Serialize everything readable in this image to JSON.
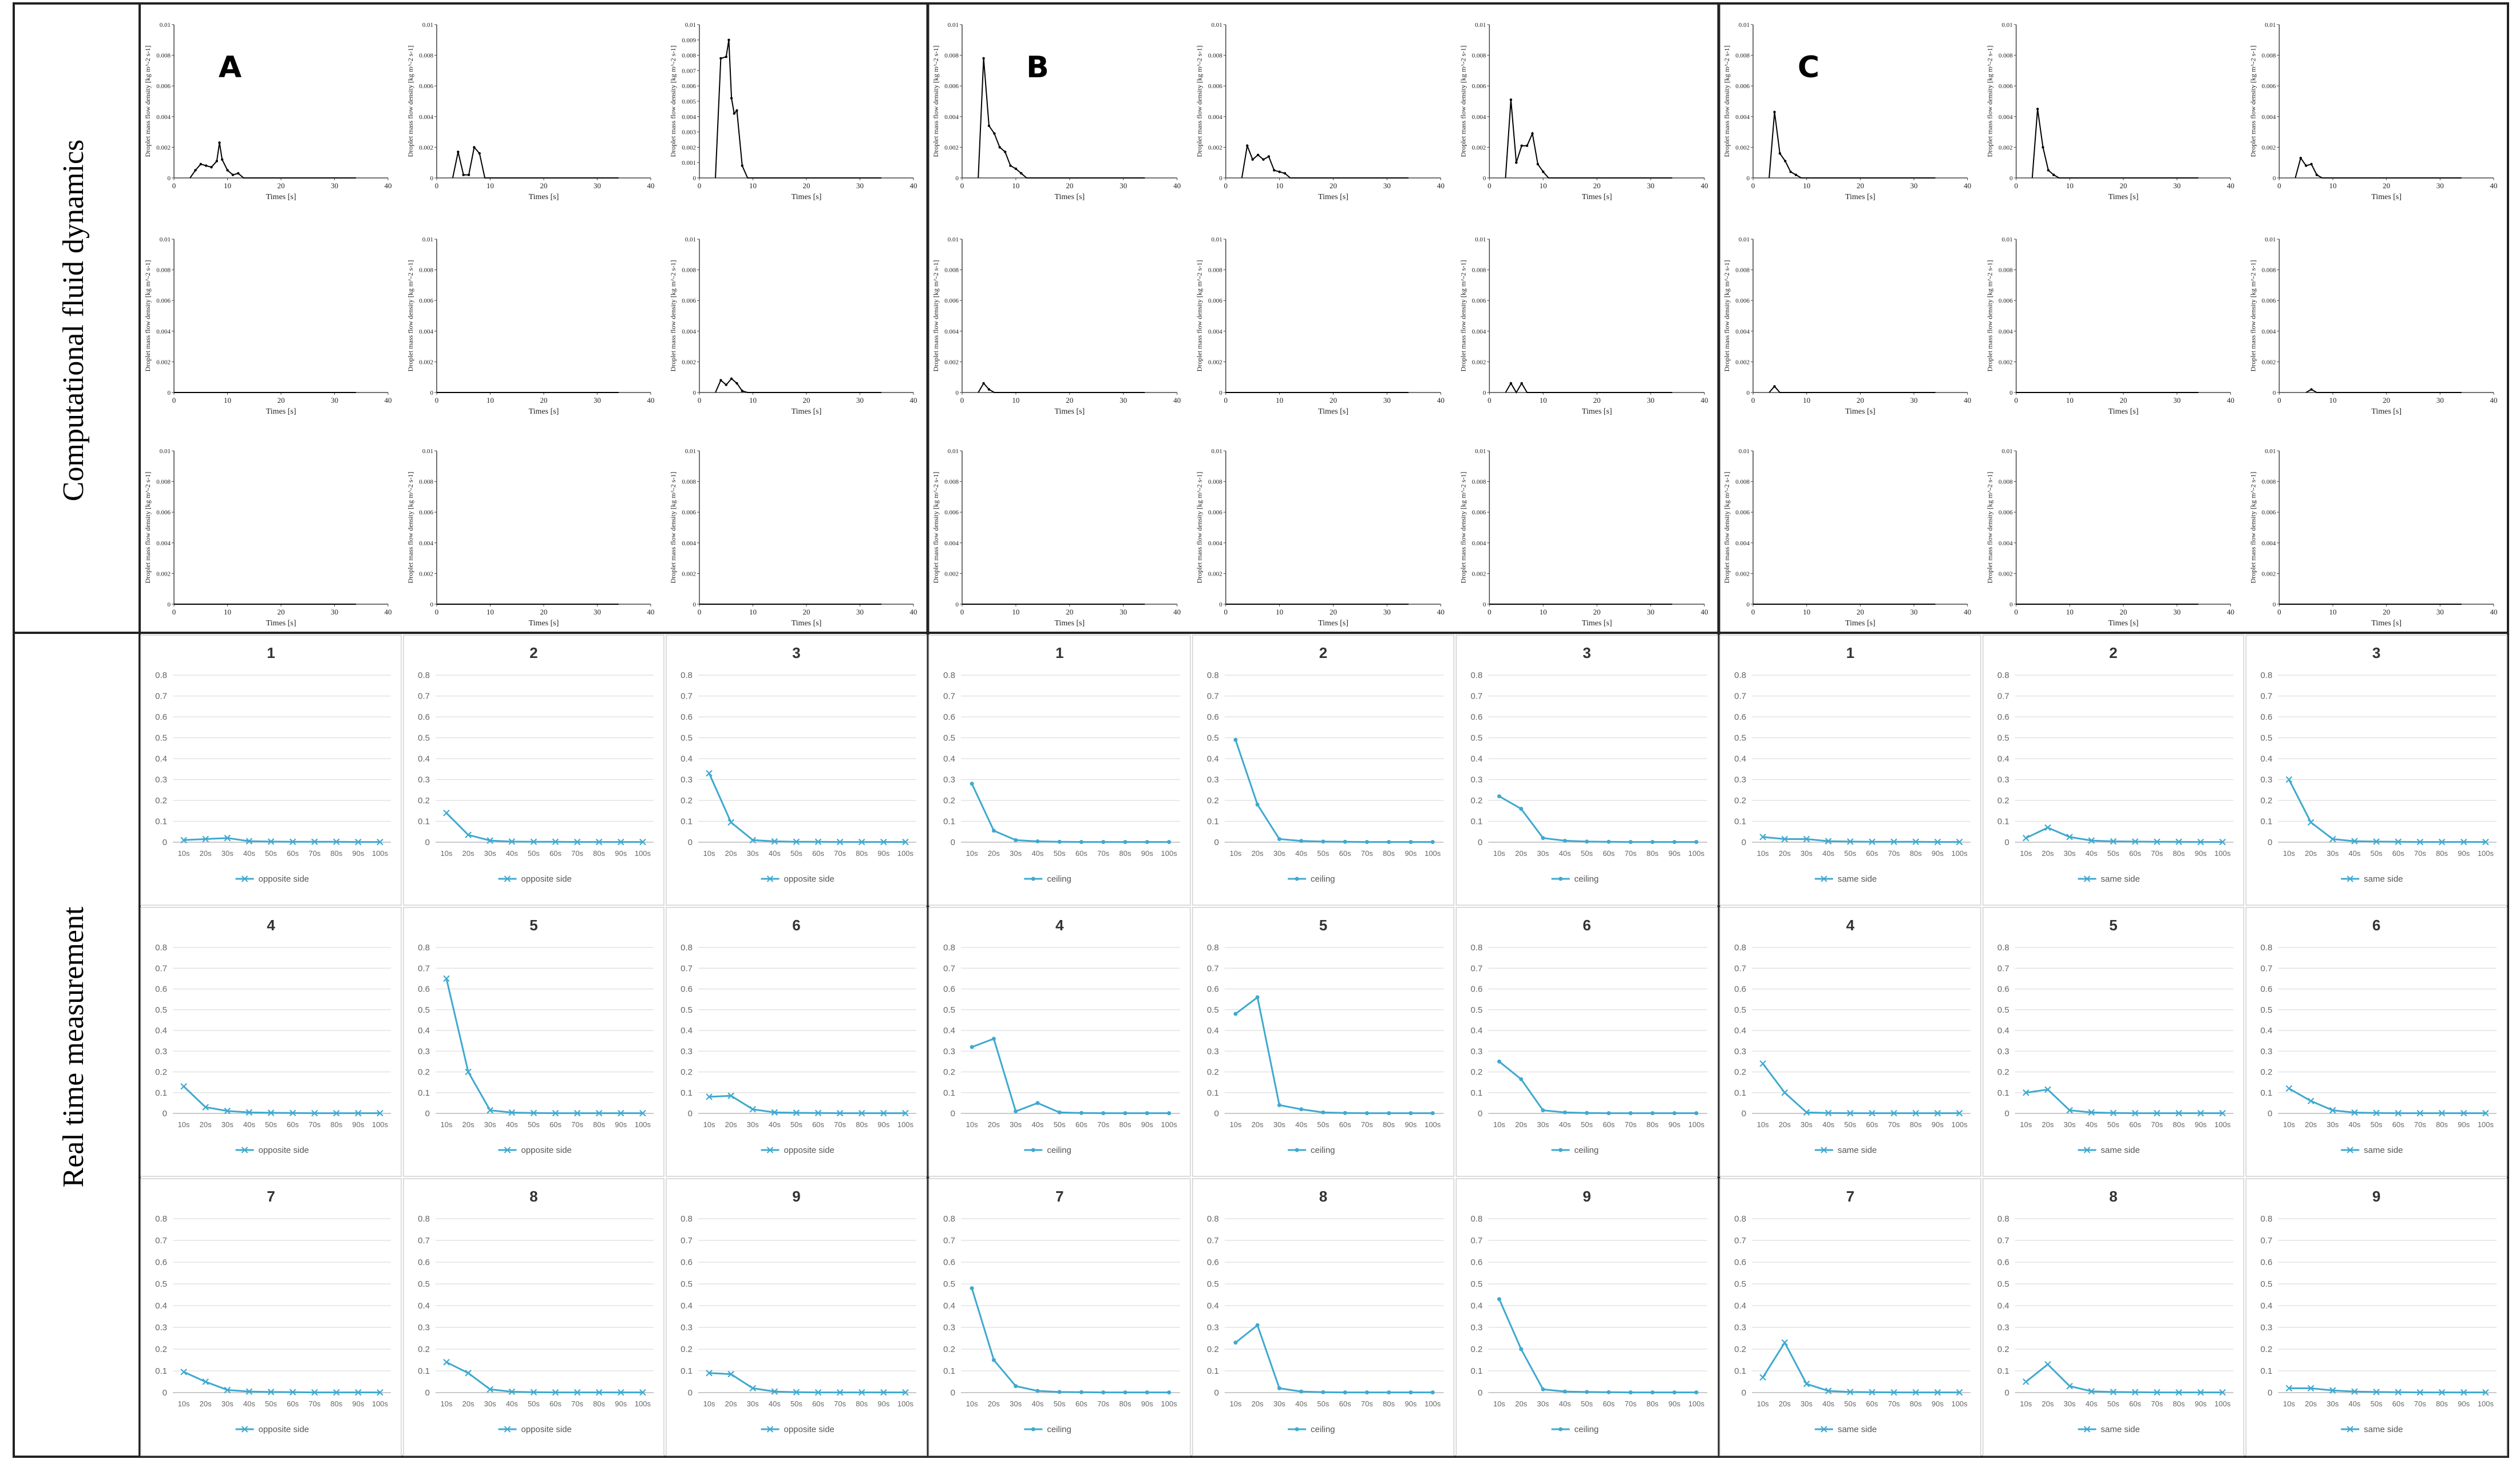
{
  "figure": {
    "row_titles": {
      "cfd": "Computational fluid dynamics",
      "realtime": "Real time measurement"
    },
    "groups": [
      "A",
      "B",
      "C"
    ]
  },
  "cfd": {
    "y_axis_label": "Droplet mass flow density [kg m^-2 s-1]",
    "x_axis_label": "Times [s]",
    "x_ticks": [
      0,
      10,
      20,
      30,
      40
    ],
    "y_ticks_main": [
      "0",
      "0.002",
      "0.004",
      "0.006",
      "0.008",
      "0.01"
    ],
    "y_ticks_fine": [
      "0",
      "0.001",
      "0.002",
      "0.003",
      "0.004",
      "0.005",
      "0.006",
      "0.007",
      "0.008",
      "0.009",
      "0.01"
    ],
    "line_color": "#000000"
  },
  "realtime": {
    "categories": [
      "10s",
      "20s",
      "30s",
      "40s",
      "50s",
      "60s",
      "70s",
      "80s",
      "90s",
      "100s"
    ],
    "y_ticks": [
      "0",
      "0.1",
      "0.2",
      "0.3",
      "0.4",
      "0.5",
      "0.6",
      "0.7",
      "0.8"
    ],
    "legend_by_group": {
      "A": "opposite side",
      "B": "ceiling",
      "C": "same side"
    },
    "marker_by_group": {
      "A": "x",
      "B": "dot",
      "C": "x"
    },
    "line_color": "#3fa9cf",
    "titles": [
      "1",
      "2",
      "3",
      "4",
      "5",
      "6",
      "7",
      "8",
      "9"
    ]
  },
  "chart_data": [
    {
      "type": "line",
      "panel": "CFD",
      "xlabel": "Times [s]",
      "ylabel": "Droplet mass flow density [kg m^-2 s-1]",
      "xlim": [
        0,
        40
      ],
      "ylim": [
        0,
        0.01
      ],
      "panels": {
        "A": [
          {
            "fine": false,
            "x": [
              3,
              4,
              5,
              6,
              7,
              8,
              8.5,
              9,
              10,
              11,
              12,
              13,
              34
            ],
            "y": [
              0,
              0.0005,
              0.0009,
              0.0008,
              0.0007,
              0.0011,
              0.0023,
              0.0012,
              0.0005,
              0.0002,
              0.0003,
              0,
              0
            ]
          },
          {
            "fine": false,
            "x": [
              3,
              4,
              5,
              6,
              7,
              8,
              9,
              34
            ],
            "y": [
              0,
              0.0017,
              0.0002,
              0.0002,
              0.002,
              0.0016,
              0,
              0
            ]
          },
          {
            "fine": true,
            "x": [
              3,
              4,
              5,
              5.5,
              6,
              6.5,
              7,
              8,
              9,
              34
            ],
            "y": [
              0,
              0.0078,
              0.0079,
              0.009,
              0.0052,
              0.0042,
              0.0044,
              0.0008,
              0,
              0
            ]
          },
          {
            "fine": false,
            "x": [
              0,
              34
            ],
            "y": [
              0,
              0
            ]
          },
          {
            "fine": false,
            "x": [
              0,
              34
            ],
            "y": [
              0,
              0
            ]
          },
          {
            "fine": false,
            "x": [
              3,
              4,
              5,
              6,
              7,
              8,
              9,
              34
            ],
            "y": [
              0,
              0.0008,
              0.0005,
              0.0009,
              0.0006,
              0.0001,
              0,
              0
            ]
          },
          {
            "fine": false,
            "x": [
              0,
              34
            ],
            "y": [
              0,
              0
            ]
          },
          {
            "fine": false,
            "x": [
              0,
              34
            ],
            "y": [
              0,
              0
            ]
          },
          {
            "fine": false,
            "x": [
              0,
              34
            ],
            "y": [
              0,
              0
            ]
          }
        ],
        "B": [
          {
            "fine": false,
            "x": [
              3,
              4,
              5,
              6,
              7,
              8,
              9,
              10,
              11,
              12,
              34
            ],
            "y": [
              0,
              0.0078,
              0.0034,
              0.0029,
              0.002,
              0.0017,
              0.0008,
              0.0006,
              0.0003,
              0,
              0
            ]
          },
          {
            "fine": false,
            "x": [
              3,
              4,
              5,
              6,
              7,
              8,
              9,
              10,
              11,
              12,
              34
            ],
            "y": [
              0,
              0.0021,
              0.0012,
              0.0015,
              0.0012,
              0.0014,
              0.0005,
              0.0004,
              0.0003,
              0,
              0
            ]
          },
          {
            "fine": false,
            "x": [
              3,
              4,
              5,
              6,
              7,
              8,
              9,
              10,
              11,
              34
            ],
            "y": [
              0,
              0.0051,
              0.001,
              0.0021,
              0.0021,
              0.0029,
              0.0009,
              0.0004,
              0,
              0
            ]
          },
          {
            "fine": false,
            "x": [
              3,
              4,
              5,
              6,
              34
            ],
            "y": [
              0,
              0.0006,
              0.0002,
              0,
              0
            ]
          },
          {
            "fine": false,
            "x": [
              0,
              34
            ],
            "y": [
              0,
              0
            ]
          },
          {
            "fine": false,
            "x": [
              3,
              4,
              5,
              6,
              7,
              34
            ],
            "y": [
              0,
              0.0006,
              0,
              0.0006,
              0,
              0
            ]
          },
          {
            "fine": false,
            "x": [
              0,
              34
            ],
            "y": [
              0,
              0
            ]
          },
          {
            "fine": false,
            "x": [
              0,
              34
            ],
            "y": [
              0,
              0
            ]
          },
          {
            "fine": false,
            "x": [
              0,
              34
            ],
            "y": [
              0,
              0
            ]
          }
        ],
        "C": [
          {
            "fine": false,
            "x": [
              3,
              4,
              5,
              6,
              7,
              8,
              9,
              34
            ],
            "y": [
              0,
              0.0043,
              0.0016,
              0.0011,
              0.0004,
              0.0002,
              0,
              0
            ]
          },
          {
            "fine": false,
            "x": [
              3,
              4,
              5,
              6,
              7,
              8,
              34
            ],
            "y": [
              0,
              0.0045,
              0.002,
              0.0005,
              0.0002,
              0,
              0
            ]
          },
          {
            "fine": false,
            "x": [
              3,
              4,
              5,
              6,
              7,
              8,
              34
            ],
            "y": [
              0,
              0.0013,
              0.0008,
              0.0009,
              0.0002,
              0,
              0
            ]
          },
          {
            "fine": false,
            "x": [
              3,
              4,
              5,
              34
            ],
            "y": [
              0,
              0.0004,
              0,
              0
            ]
          },
          {
            "fine": false,
            "x": [
              0,
              34
            ],
            "y": [
              0,
              0
            ]
          },
          {
            "fine": false,
            "x": [
              5,
              6,
              7,
              34
            ],
            "y": [
              0,
              0.0002,
              0,
              0
            ]
          },
          {
            "fine": false,
            "x": [
              0,
              34
            ],
            "y": [
              0,
              0
            ]
          },
          {
            "fine": false,
            "x": [
              0,
              34
            ],
            "y": [
              0,
              0
            ]
          },
          {
            "fine": false,
            "x": [
              0,
              34
            ],
            "y": [
              0,
              0
            ]
          }
        ]
      }
    },
    {
      "type": "line",
      "panel": "Real time measurement",
      "categories": [
        "10s",
        "20s",
        "30s",
        "40s",
        "50s",
        "60s",
        "70s",
        "80s",
        "90s",
        "100s"
      ],
      "ylim": [
        0,
        0.8
      ],
      "groups": {
        "A": {
          "series_name": "opposite side",
          "panels": [
            [
              0.01,
              0.015,
              0.02,
              0.005,
              0.003,
              0.002,
              0.002,
              0.002,
              0.001,
              0.001
            ],
            [
              0.14,
              0.035,
              0.008,
              0.003,
              0.002,
              0.002,
              0.001,
              0.001,
              0.001,
              0.001
            ],
            [
              0.33,
              0.095,
              0.01,
              0.004,
              0.002,
              0.002,
              0.001,
              0.001,
              0.001,
              0.001
            ],
            [
              0.13,
              0.03,
              0.012,
              0.005,
              0.003,
              0.002,
              0.001,
              0.001,
              0.001,
              0.001
            ],
            [
              0.65,
              0.2,
              0.015,
              0.004,
              0.002,
              0.001,
              0.001,
              0.001,
              0.001,
              0.001
            ],
            [
              0.08,
              0.085,
              0.02,
              0.005,
              0.003,
              0.002,
              0.001,
              0.001,
              0.001,
              0.001
            ],
            [
              0.095,
              0.05,
              0.012,
              0.005,
              0.003,
              0.002,
              0.001,
              0.001,
              0.001,
              0.001
            ],
            [
              0.14,
              0.09,
              0.015,
              0.004,
              0.002,
              0.001,
              0.001,
              0.001,
              0.001,
              0.001
            ],
            [
              0.09,
              0.085,
              0.02,
              0.005,
              0.002,
              0.001,
              0.001,
              0.001,
              0.001,
              0.001
            ]
          ]
        },
        "B": {
          "series_name": "ceiling",
          "panels": [
            [
              0.28,
              0.055,
              0.01,
              0.004,
              0.002,
              0.001,
              0.001,
              0.001,
              0.001,
              0.001
            ],
            [
              0.49,
              0.18,
              0.015,
              0.006,
              0.003,
              0.002,
              0.001,
              0.001,
              0.001,
              0.001
            ],
            [
              0.22,
              0.16,
              0.02,
              0.007,
              0.003,
              0.002,
              0.001,
              0.001,
              0.001,
              0.001
            ],
            [
              0.32,
              0.36,
              0.01,
              0.05,
              0.005,
              0.002,
              0.001,
              0.001,
              0.001,
              0.001
            ],
            [
              0.48,
              0.56,
              0.04,
              0.02,
              0.005,
              0.002,
              0.001,
              0.001,
              0.001,
              0.001
            ],
            [
              0.25,
              0.165,
              0.015,
              0.005,
              0.002,
              0.001,
              0.001,
              0.001,
              0.001,
              0.001
            ],
            [
              0.48,
              0.15,
              0.03,
              0.008,
              0.003,
              0.002,
              0.001,
              0.001,
              0.001,
              0.001
            ],
            [
              0.23,
              0.31,
              0.02,
              0.005,
              0.002,
              0.001,
              0.001,
              0.001,
              0.001,
              0.001
            ],
            [
              0.43,
              0.2,
              0.015,
              0.005,
              0.003,
              0.002,
              0.001,
              0.001,
              0.001,
              0.001
            ]
          ]
        },
        "C": {
          "series_name": "same side",
          "panels": [
            [
              0.025,
              0.015,
              0.015,
              0.005,
              0.003,
              0.002,
              0.002,
              0.002,
              0.001,
              0.001
            ],
            [
              0.02,
              0.07,
              0.025,
              0.008,
              0.004,
              0.003,
              0.002,
              0.002,
              0.001,
              0.001
            ],
            [
              0.3,
              0.095,
              0.015,
              0.005,
              0.003,
              0.002,
              0.001,
              0.001,
              0.001,
              0.001
            ],
            [
              0.24,
              0.1,
              0.005,
              0.002,
              0.001,
              0.001,
              0.001,
              0.001,
              0.001,
              0.001
            ],
            [
              0.1,
              0.115,
              0.015,
              0.005,
              0.002,
              0.001,
              0.001,
              0.001,
              0.001,
              0.001
            ],
            [
              0.12,
              0.06,
              0.015,
              0.004,
              0.002,
              0.001,
              0.001,
              0.001,
              0.001,
              0.001
            ],
            [
              0.07,
              0.23,
              0.04,
              0.008,
              0.003,
              0.002,
              0.001,
              0.001,
              0.001,
              0.001
            ],
            [
              0.05,
              0.13,
              0.03,
              0.006,
              0.003,
              0.002,
              0.001,
              0.001,
              0.001,
              0.001
            ],
            [
              0.02,
              0.02,
              0.01,
              0.005,
              0.003,
              0.002,
              0.001,
              0.001,
              0.001,
              0.001
            ]
          ]
        }
      }
    }
  ]
}
